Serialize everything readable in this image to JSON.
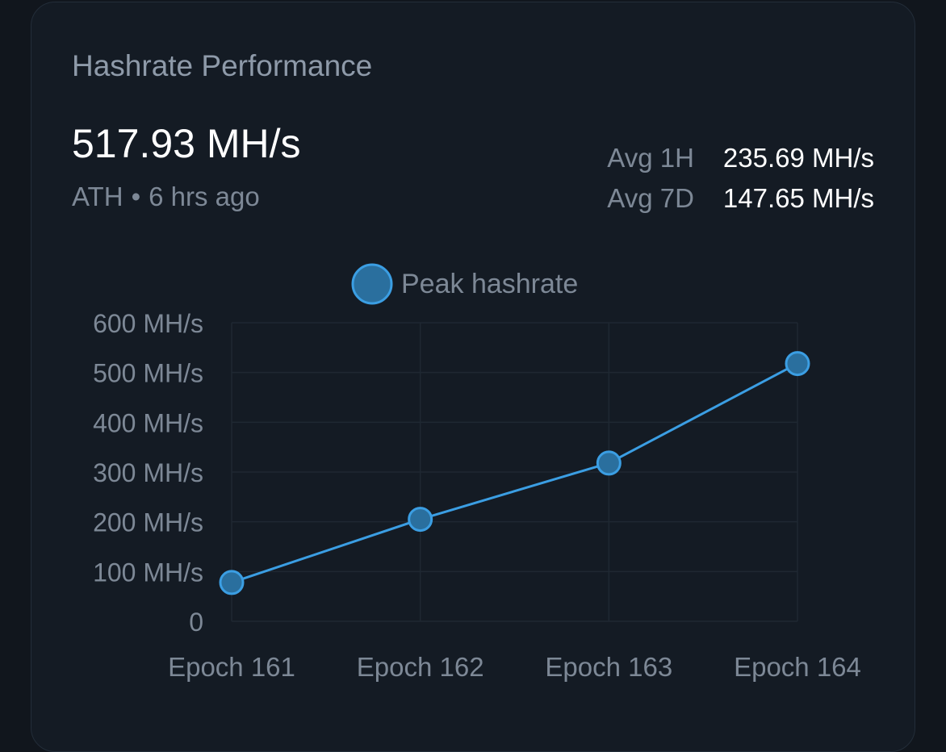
{
  "card": {
    "title": "Hashrate Performance",
    "ath_value": "517.93 MH/s",
    "ath_label": "ATH",
    "ath_separator": "•",
    "ath_time": "6 hrs ago",
    "avg_1h_label": "Avg 1H",
    "avg_1h_value": "235.69 MH/s",
    "avg_7d_label": "Avg 7D",
    "avg_7d_value": "147.65 MH/s"
  },
  "colors": {
    "series": "#3b9ee3",
    "marker_fill": "#2a6f9e",
    "grid": "#1f2832",
    "tick_text": "#7d8896"
  },
  "chart_data": {
    "type": "line",
    "categories": [
      "Epoch 161",
      "Epoch 162",
      "Epoch 163",
      "Epoch 164"
    ],
    "series": [
      {
        "name": "Peak hashrate",
        "values": [
          78,
          205,
          318,
          518
        ]
      }
    ],
    "ylim": [
      0,
      600
    ],
    "yticks": [
      0,
      100,
      200,
      300,
      400,
      500,
      600
    ],
    "ytick_labels": [
      "0",
      "100 MH/s",
      "200 MH/s",
      "300 MH/s",
      "400 MH/s",
      "500 MH/s",
      "600 MH/s"
    ],
    "legend_position": "top-center",
    "grid": true
  }
}
